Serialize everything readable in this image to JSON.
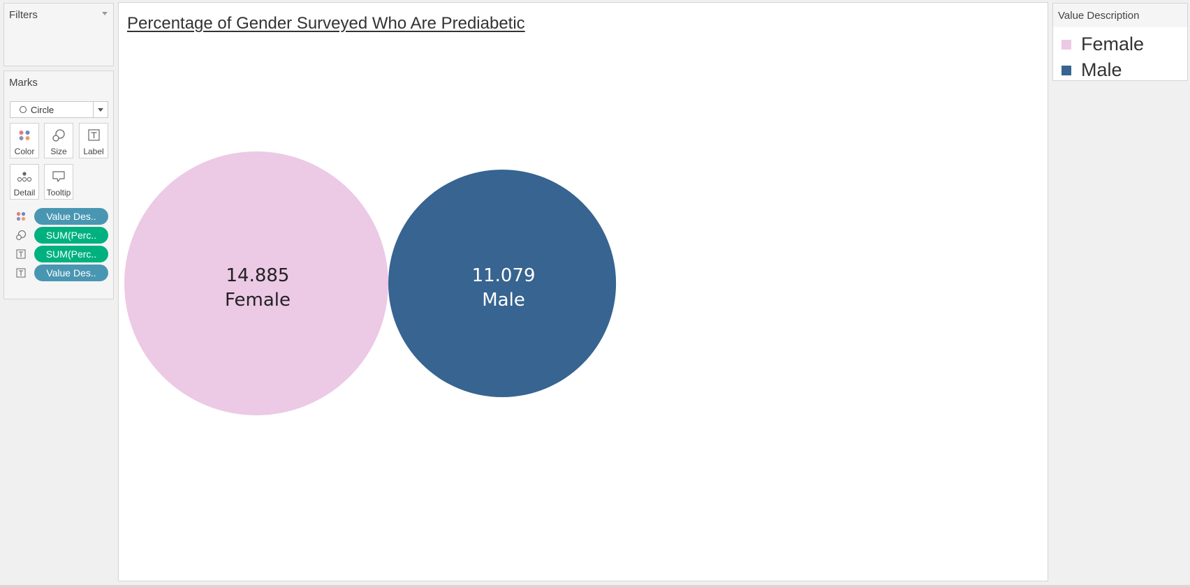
{
  "filters": {
    "title": "Filters"
  },
  "marks": {
    "title": "Marks",
    "mark_type": "Circle",
    "buttons": {
      "color": "Color",
      "size": "Size",
      "label": "Label",
      "detail": "Detail",
      "tooltip": "Tooltip"
    },
    "pills": [
      {
        "icon": "color-icon",
        "text": "Value Des..",
        "kind": "dimension"
      },
      {
        "icon": "size-icon",
        "text": "SUM(Perc..",
        "kind": "measure"
      },
      {
        "icon": "label-icon",
        "text": "SUM(Perc..",
        "kind": "measure"
      },
      {
        "icon": "label-icon",
        "text": "Value Des..",
        "kind": "dimension"
      }
    ]
  },
  "legend": {
    "title": "Value Description",
    "items": [
      {
        "label": "Female",
        "color": "#ecc9e5"
      },
      {
        "label": "Male",
        "color": "#376490"
      }
    ]
  },
  "chart_data": {
    "type": "packed-bubble",
    "title": "Percentage of Gender Surveyed Who Are Prediabetic",
    "categories": [
      "Female",
      "Male"
    ],
    "values": [
      14.885,
      11.079
    ],
    "value_labels": [
      "14.885",
      "11.079"
    ],
    "colors": [
      "#ecc9e5",
      "#376490"
    ],
    "label_colors": [
      "#222222",
      "#ffffff"
    ],
    "size_encoding": "area",
    "legend": "top-right"
  }
}
